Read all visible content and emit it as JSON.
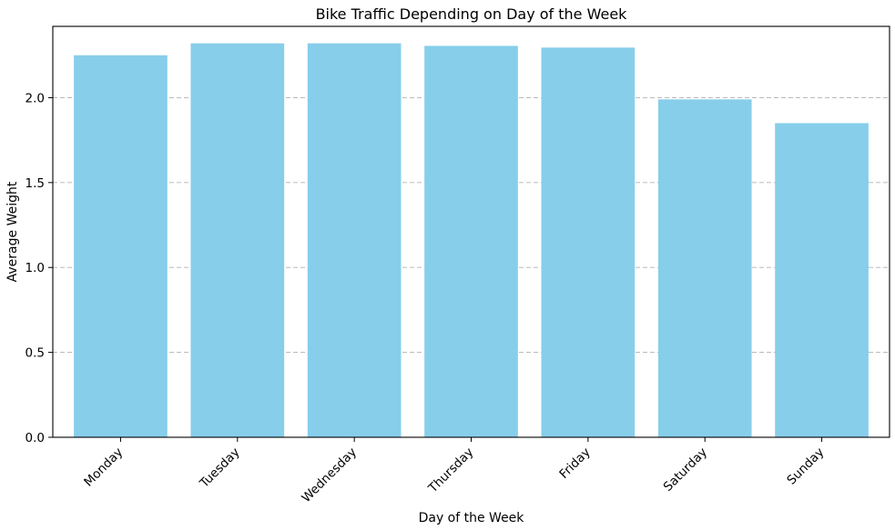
{
  "chart_data": {
    "type": "bar",
    "title": "Bike Traffic Depending on Day of the Week",
    "xlabel": "Day of the Week",
    "ylabel": "Average Weight",
    "categories": [
      "Monday",
      "Tuesday",
      "Wednesday",
      "Thursday",
      "Friday",
      "Saturday",
      "Sunday"
    ],
    "values": [
      2.25,
      2.32,
      2.32,
      2.305,
      2.295,
      1.99,
      1.85
    ],
    "ylim": [
      0,
      2.42
    ],
    "yticks": [
      0.0,
      0.5,
      1.0,
      1.5,
      2.0
    ],
    "ytick_labels": [
      "0.0",
      "0.5",
      "1.0",
      "1.5",
      "2.0"
    ],
    "bar_color": "#87ceeb",
    "grid": "y-axis dashed",
    "xtick_rotation": "45 degrees"
  }
}
